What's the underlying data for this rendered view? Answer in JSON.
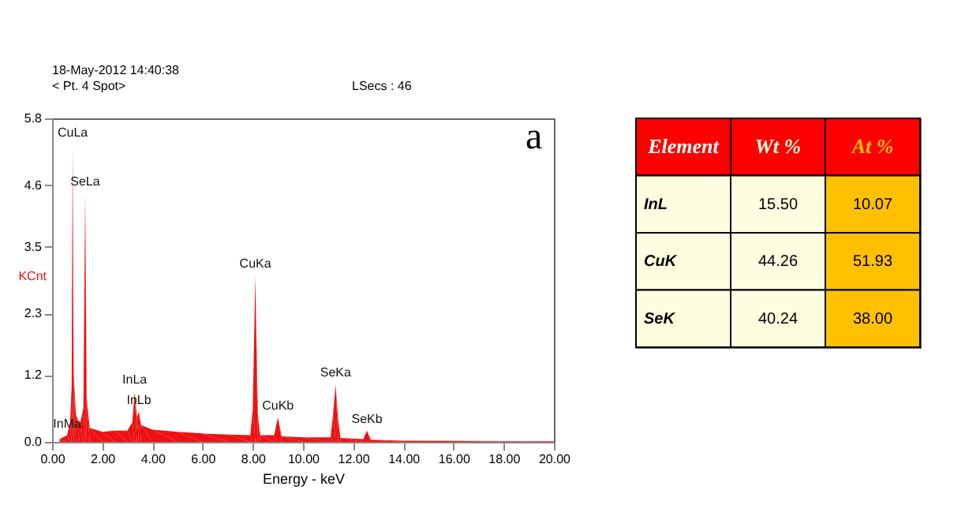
{
  "chart_data": [
    {
      "type": "area",
      "xlabel": "Energy - keV",
      "ylabel": "KCnt",
      "x": [
        0.3,
        0.6,
        0.72,
        0.78,
        0.82,
        0.86,
        0.95,
        1.1,
        1.25,
        1.32,
        1.38,
        1.5,
        2.0,
        2.5,
        3.0,
        3.2,
        3.29,
        3.38,
        3.46,
        3.55,
        4.0,
        5.0,
        6.0,
        7.0,
        7.9,
        8.0,
        8.1,
        8.2,
        8.3,
        8.85,
        9.0,
        9.15,
        10.0,
        11.1,
        11.2,
        11.3,
        11.4,
        11.5,
        12.4,
        12.55,
        12.7,
        14.0,
        20.0
      ],
      "series": [
        {
          "color": "#ee1111",
          "values": [
            0.05,
            0.12,
            0.35,
            1.0,
            5.33,
            1.2,
            0.5,
            0.3,
            0.6,
            4.45,
            0.8,
            0.25,
            0.18,
            0.2,
            0.2,
            0.35,
            0.9,
            0.45,
            0.54,
            0.3,
            0.22,
            0.18,
            0.15,
            0.13,
            0.12,
            0.6,
            2.98,
            0.5,
            0.12,
            0.12,
            0.44,
            0.1,
            0.08,
            0.08,
            0.5,
            1.03,
            0.4,
            0.07,
            0.05,
            0.2,
            0.04,
            0.02,
            0.01
          ]
        }
      ],
      "xlim": [
        0,
        20
      ],
      "xticks": [
        {
          "value": 0,
          "label": "0.00"
        },
        {
          "value": 2,
          "label": "2.00"
        },
        {
          "value": 4,
          "label": "4.00"
        },
        {
          "value": 6,
          "label": "6.00"
        },
        {
          "value": 8,
          "label": "8.00"
        },
        {
          "value": 10,
          "label": "10.00"
        },
        {
          "value": 12,
          "label": "12.00"
        },
        {
          "value": 14,
          "label": "14.00"
        },
        {
          "value": 16,
          "label": "16.00"
        },
        {
          "value": 18,
          "label": "18.00"
        },
        {
          "value": 20,
          "label": "20.00"
        }
      ],
      "ylim": [
        0,
        5.8
      ],
      "yticks": [
        {
          "value": 0,
          "label": "0.0"
        },
        1.2,
        2.3,
        3.5,
        4.6,
        5.8
      ],
      "annotations": [
        "18-May-2012 14:40:38",
        "< Pt. 4 Spot>",
        "LSecs : 46",
        "a",
        {
          "text": "InMa",
          "x": 0.6,
          "y": 0.12
        },
        {
          "text": "CuLa",
          "x": 0.82,
          "y": 5.33
        },
        {
          "text": "SeLa",
          "x": 1.32,
          "y": 4.45
        },
        {
          "text": "InLa",
          "x": 3.29,
          "y": 0.9
        },
        {
          "text": "InLb",
          "x": 3.46,
          "y": 0.54
        },
        {
          "text": "CuKa",
          "x": 8.1,
          "y": 2.98
        },
        {
          "text": "CuKb",
          "x": 9.0,
          "y": 0.44
        },
        {
          "text": "SeKa",
          "x": 11.3,
          "y": 1.03
        },
        {
          "text": "SeKb",
          "x": 12.55,
          "y": 0.2
        }
      ]
    },
    {
      "type": "other",
      "xlabel": "Element",
      "categories": [
        "InL",
        "CuK",
        "SeK"
      ],
      "series": [
        {
          "name": "Wt %",
          "color": "#fffde0",
          "value_labels": [
            "15.50",
            "44.26",
            "40.24"
          ],
          "values": [
            15.5,
            44.26,
            40.24
          ]
        },
        {
          "name": "At %",
          "color": "#ffc000",
          "value_labels": [
            "10.07",
            "51.93",
            "38.00"
          ],
          "values": [
            10.07,
            51.93,
            38.0
          ]
        }
      ]
    }
  ]
}
